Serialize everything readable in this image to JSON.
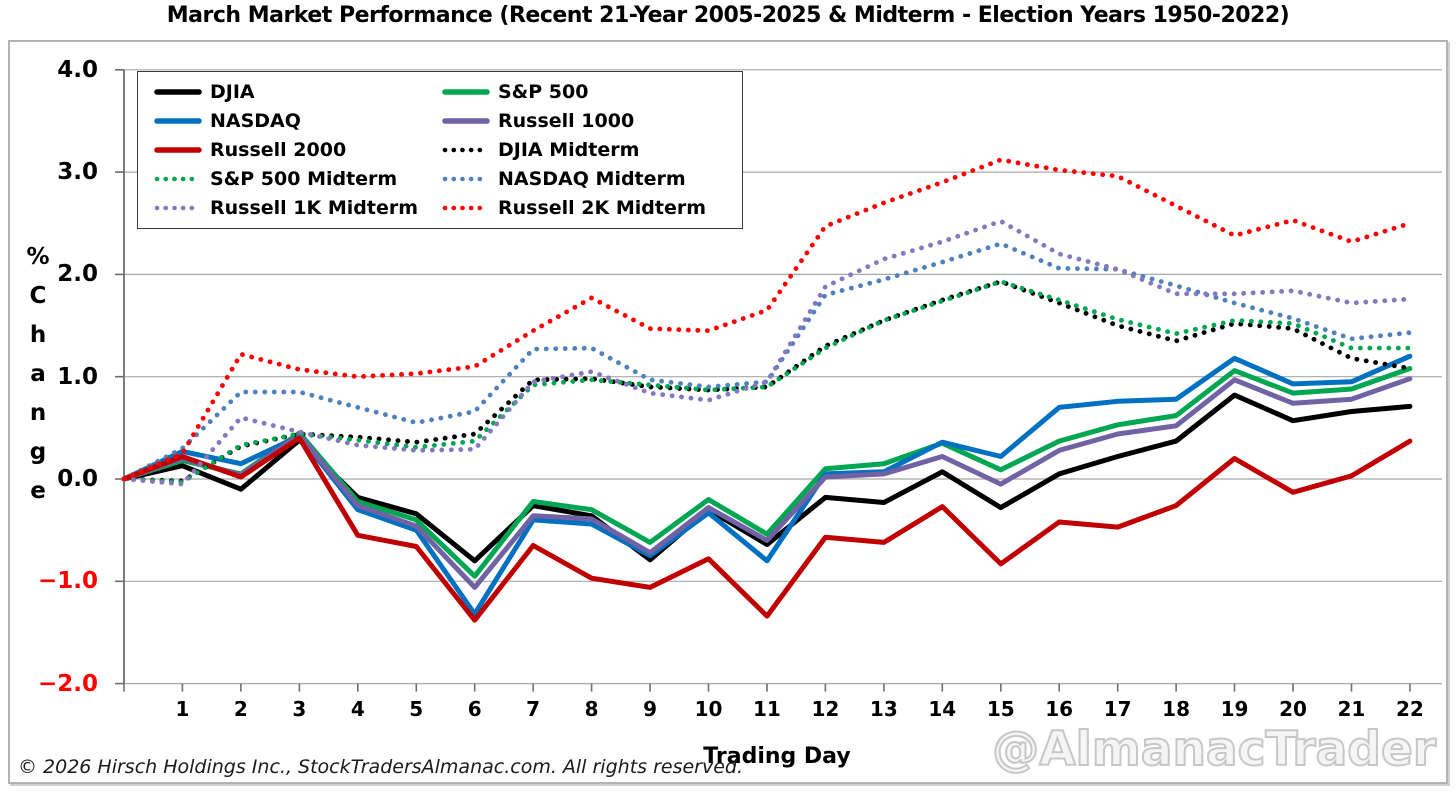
{
  "title": "March Market Performance (Recent 21-Year 2005-2025 & Midterm - Election Years 1950-2022)",
  "footer": "© 2026 Hirsch Holdings Inc., StockTradersAlmanac.com. All rights reserved.",
  "watermark": "@AlmanacTrader",
  "y_axis": {
    "label": "% Change",
    "label_chars": [
      "%",
      "C",
      "h",
      "a",
      "n",
      "g",
      "e"
    ],
    "ticks": [
      {
        "value": 4.0,
        "label": "4.0",
        "color": "#000000"
      },
      {
        "value": 3.0,
        "label": "3.0",
        "color": "#000000"
      },
      {
        "value": 2.0,
        "label": "2.0",
        "color": "#000000"
      },
      {
        "value": 1.0,
        "label": "1.0",
        "color": "#000000"
      },
      {
        "value": 0.0,
        "label": "0.0",
        "color": "#000000"
      },
      {
        "value": -1.0,
        "label": "−1.0",
        "color": "#ff0000"
      },
      {
        "value": -2.0,
        "label": "−2.0",
        "color": "#ff0000"
      }
    ]
  },
  "x_axis": {
    "label": "Trading Day",
    "days": [
      "1",
      "2",
      "3",
      "4",
      "5",
      "6",
      "7",
      "8",
      "9",
      "10",
      "11",
      "12",
      "13",
      "14",
      "15",
      "16",
      "17",
      "18",
      "19",
      "20",
      "21",
      "22"
    ]
  },
  "colors": {
    "grid": "#a8a8a8",
    "axis": "#6e6e6e",
    "negative_tick": "#ff0000"
  },
  "chart_data": {
    "type": "line",
    "title": "March Market Performance (Recent 21-Year 2005-2025 & Midterm - Election Years 1950-2022)",
    "xlabel": "Trading Day",
    "ylabel": "% Change",
    "xlim": [
      0,
      22
    ],
    "ylim": [
      -2.0,
      4.0
    ],
    "grid": true,
    "legend_position": "top-left",
    "x": [
      0,
      1,
      2,
      3,
      4,
      5,
      6,
      7,
      8,
      9,
      10,
      11,
      12,
      13,
      14,
      15,
      16,
      17,
      18,
      19,
      20,
      21,
      22
    ],
    "series": [
      {
        "name": "DJIA",
        "style": "solid",
        "color": "#000000",
        "values": [
          0,
          0.13,
          -0.1,
          0.38,
          -0.18,
          -0.34,
          -0.8,
          -0.26,
          -0.36,
          -0.79,
          -0.3,
          -0.64,
          -0.18,
          -0.23,
          0.07,
          -0.28,
          0.05,
          0.22,
          0.37,
          0.82,
          0.57,
          0.66,
          0.71
        ]
      },
      {
        "name": "S&P 500",
        "style": "solid",
        "color": "#00A651",
        "values": [
          0,
          0.18,
          0.05,
          0.45,
          -0.22,
          -0.4,
          -0.95,
          -0.22,
          -0.3,
          -0.62,
          -0.2,
          -0.54,
          0.1,
          0.15,
          0.35,
          0.09,
          0.37,
          0.53,
          0.62,
          1.06,
          0.84,
          0.88,
          1.08
        ]
      },
      {
        "name": "NASDAQ",
        "style": "solid",
        "color": "#0070C0",
        "values": [
          0,
          0.27,
          0.15,
          0.42,
          -0.3,
          -0.5,
          -1.32,
          -0.4,
          -0.44,
          -0.75,
          -0.33,
          -0.8,
          0.05,
          0.07,
          0.36,
          0.22,
          0.7,
          0.76,
          0.78,
          1.18,
          0.93,
          0.95,
          1.2
        ]
      },
      {
        "name": "Russell 1000",
        "style": "solid",
        "color": "#7161A5",
        "values": [
          0,
          0.2,
          0.04,
          0.43,
          -0.26,
          -0.46,
          -1.06,
          -0.36,
          -0.39,
          -0.72,
          -0.28,
          -0.6,
          0.02,
          0.05,
          0.22,
          -0.05,
          0.28,
          0.44,
          0.52,
          0.97,
          0.74,
          0.78,
          0.98
        ]
      },
      {
        "name": "Russell 2000",
        "style": "solid",
        "color": "#C00000",
        "values": [
          0,
          0.22,
          0.02,
          0.4,
          -0.55,
          -0.66,
          -1.38,
          -0.65,
          -0.97,
          -1.06,
          -0.78,
          -1.34,
          -0.57,
          -0.62,
          -0.27,
          -0.83,
          -0.42,
          -0.47,
          -0.26,
          0.2,
          -0.13,
          0.03,
          0.37
        ]
      },
      {
        "name": "DJIA Midterm",
        "style": "dotted",
        "color": "#000000",
        "values": [
          0,
          -0.02,
          0.32,
          0.44,
          0.41,
          0.36,
          0.44,
          0.97,
          0.98,
          0.9,
          0.87,
          0.9,
          1.3,
          1.55,
          1.75,
          1.93,
          1.72,
          1.5,
          1.35,
          1.52,
          1.47,
          1.18,
          1.08
        ]
      },
      {
        "name": "S&P 500 Midterm",
        "style": "dotted",
        "color": "#00A651",
        "values": [
          0,
          -0.03,
          0.33,
          0.44,
          0.38,
          0.31,
          0.37,
          0.92,
          0.97,
          0.92,
          0.87,
          0.9,
          1.28,
          1.55,
          1.74,
          1.93,
          1.75,
          1.56,
          1.42,
          1.55,
          1.52,
          1.28,
          1.28
        ]
      },
      {
        "name": "NASDAQ Midterm",
        "style": "dotted",
        "color": "#4F81BD",
        "values": [
          0,
          0.3,
          0.85,
          0.85,
          0.7,
          0.55,
          0.66,
          1.27,
          1.28,
          0.97,
          0.9,
          0.95,
          1.8,
          1.95,
          2.12,
          2.3,
          2.06,
          2.05,
          1.89,
          1.72,
          1.57,
          1.37,
          1.43
        ]
      },
      {
        "name": "Russell 1K Midterm",
        "style": "dotted",
        "color": "#8677BE",
        "values": [
          0,
          -0.05,
          0.6,
          0.46,
          0.33,
          0.28,
          0.29,
          0.95,
          1.05,
          0.84,
          0.77,
          0.95,
          1.88,
          2.15,
          2.32,
          2.52,
          2.2,
          2.05,
          1.81,
          1.81,
          1.84,
          1.72,
          1.76
        ]
      },
      {
        "name": "Russell 2K Midterm",
        "style": "dotted",
        "color": "#FF0000",
        "values": [
          0,
          0.25,
          1.22,
          1.07,
          1.0,
          1.03,
          1.1,
          1.45,
          1.77,
          1.47,
          1.45,
          1.65,
          2.47,
          2.7,
          2.9,
          3.12,
          3.02,
          2.96,
          2.67,
          2.38,
          2.53,
          2.32,
          2.5
        ]
      }
    ]
  }
}
